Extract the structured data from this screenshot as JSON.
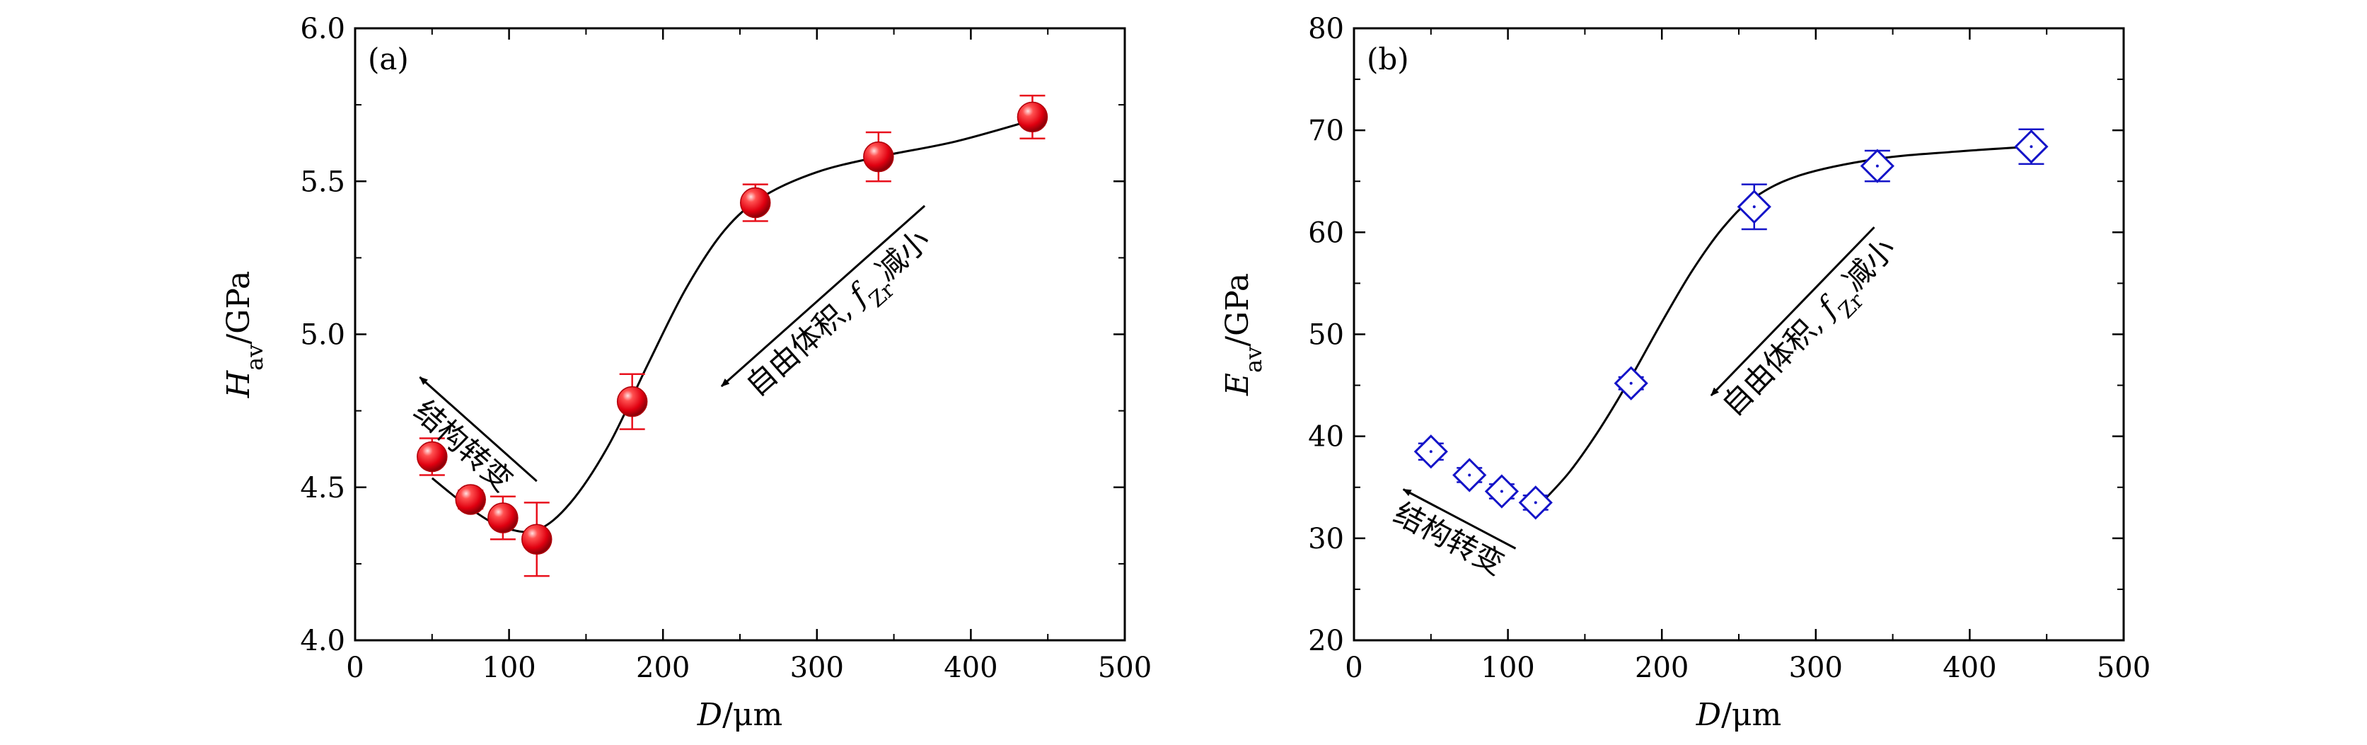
{
  "chart_data": [
    {
      "type": "scatter",
      "panel_label": "(a)",
      "ylabel_main": "H",
      "ylabel_sub": "av",
      "ylabel_unit": "/GPa",
      "xlabel_main": "D",
      "xlabel_unit": "/μm",
      "xlim": [
        0,
        500
      ],
      "ylim": [
        4.0,
        6.0
      ],
      "xticks": [
        "0",
        "100",
        "200",
        "300",
        "400",
        "500"
      ],
      "yticks": [
        "4.0",
        "4.5",
        "5.0",
        "5.5",
        "6.0"
      ],
      "marker": "filled-circle",
      "color": "#e8101c",
      "points": [
        {
          "x": 50,
          "y": 4.6,
          "err": 0.06
        },
        {
          "x": 75,
          "y": 4.46,
          "err": 0.03
        },
        {
          "x": 96,
          "y": 4.4,
          "err": 0.07
        },
        {
          "x": 118,
          "y": 4.33,
          "err": 0.12
        },
        {
          "x": 180,
          "y": 4.78,
          "err": 0.09
        },
        {
          "x": 260,
          "y": 5.43,
          "err": 0.06
        },
        {
          "x": 340,
          "y": 5.58,
          "err": 0.08
        },
        {
          "x": 440,
          "y": 5.71,
          "err": 0.07
        }
      ],
      "fit_curve": [
        [
          50,
          4.53
        ],
        [
          75,
          4.43
        ],
        [
          96,
          4.37
        ],
        [
          118,
          4.36
        ],
        [
          140,
          4.45
        ],
        [
          165,
          4.64
        ],
        [
          190,
          4.9
        ],
        [
          215,
          5.15
        ],
        [
          240,
          5.34
        ],
        [
          265,
          5.45
        ],
        [
          300,
          5.53
        ],
        [
          340,
          5.58
        ],
        [
          390,
          5.63
        ],
        [
          440,
          5.7
        ]
      ],
      "annotations": [
        {
          "text": "结构转变",
          "arrow_from": [
            118,
            4.52
          ],
          "arrow_to": [
            42,
            4.86
          ]
        },
        {
          "text_prefix": "自由体积, ",
          "text_f": "f",
          "text_sub": "Zr",
          "text_suffix": "减小",
          "arrow_from": [
            370,
            5.42
          ],
          "arrow_to": [
            238,
            4.83
          ]
        }
      ]
    },
    {
      "type": "scatter",
      "panel_label": "(b)",
      "ylabel_main": "E",
      "ylabel_sub": "av",
      "ylabel_unit": "/GPa",
      "xlabel_main": "D",
      "xlabel_unit": "/μm",
      "xlim": [
        0,
        500
      ],
      "ylim": [
        20,
        80
      ],
      "xticks": [
        "0",
        "100",
        "200",
        "300",
        "400",
        "500"
      ],
      "yticks": [
        "20",
        "30",
        "40",
        "50",
        "60",
        "70",
        "80"
      ],
      "marker": "open-diamond",
      "color": "#1414c8",
      "points": [
        {
          "x": 50,
          "y": 38.5,
          "err": 0.8
        },
        {
          "x": 75,
          "y": 36.2,
          "err": 0.7
        },
        {
          "x": 96,
          "y": 34.6,
          "err": 0.7
        },
        {
          "x": 118,
          "y": 33.5,
          "err": 0.7
        },
        {
          "x": 180,
          "y": 45.2,
          "err": 0.6
        },
        {
          "x": 260,
          "y": 62.5,
          "err": 2.2
        },
        {
          "x": 340,
          "y": 66.5,
          "err": 1.5
        },
        {
          "x": 440,
          "y": 68.4,
          "err": 1.7
        }
      ],
      "fit_curve": [
        [
          120,
          33.2
        ],
        [
          140,
          36.5
        ],
        [
          160,
          40.8
        ],
        [
          180,
          45.8
        ],
        [
          200,
          51.2
        ],
        [
          220,
          56.3
        ],
        [
          240,
          60.5
        ],
        [
          260,
          63.4
        ],
        [
          290,
          65.6
        ],
        [
          340,
          67.2
        ],
        [
          390,
          67.9
        ],
        [
          440,
          68.4
        ]
      ],
      "annotations": [
        {
          "text": "结构转变",
          "arrow_from": [
            105,
            29.0
          ],
          "arrow_to": [
            32,
            34.8
          ]
        },
        {
          "text_prefix": "自由体积, ",
          "text_f": "f",
          "text_sub": "Zr",
          "text_suffix": "减小",
          "arrow_from": [
            338,
            60.5
          ],
          "arrow_to": [
            232,
            44.0
          ]
        }
      ]
    }
  ]
}
